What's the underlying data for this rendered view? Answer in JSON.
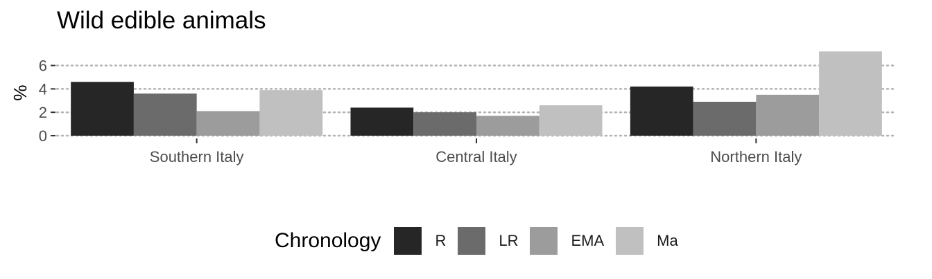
{
  "chart_data": {
    "type": "bar",
    "title": "Wild edible animals",
    "xlabel": "",
    "ylabel": "%",
    "ylim": [
      0,
      7.2
    ],
    "yticks": [
      0,
      2,
      4,
      6
    ],
    "grid": "horizontal dotted",
    "categories": [
      "Southern Italy",
      "Central Italy",
      "Northern Italy"
    ],
    "legend_title": "Chronology",
    "legend_position": "bottom",
    "series": [
      {
        "name": "R",
        "color": "#262626",
        "values": [
          4.6,
          2.4,
          4.2
        ]
      },
      {
        "name": "LR",
        "color": "#6b6b6b",
        "values": [
          3.6,
          2.0,
          2.9
        ]
      },
      {
        "name": "EMA",
        "color": "#9c9c9c",
        "values": [
          2.1,
          1.7,
          3.5
        ]
      },
      {
        "name": "Ma",
        "color": "#c0c0c0",
        "values": [
          3.9,
          2.6,
          7.2
        ]
      }
    ]
  }
}
